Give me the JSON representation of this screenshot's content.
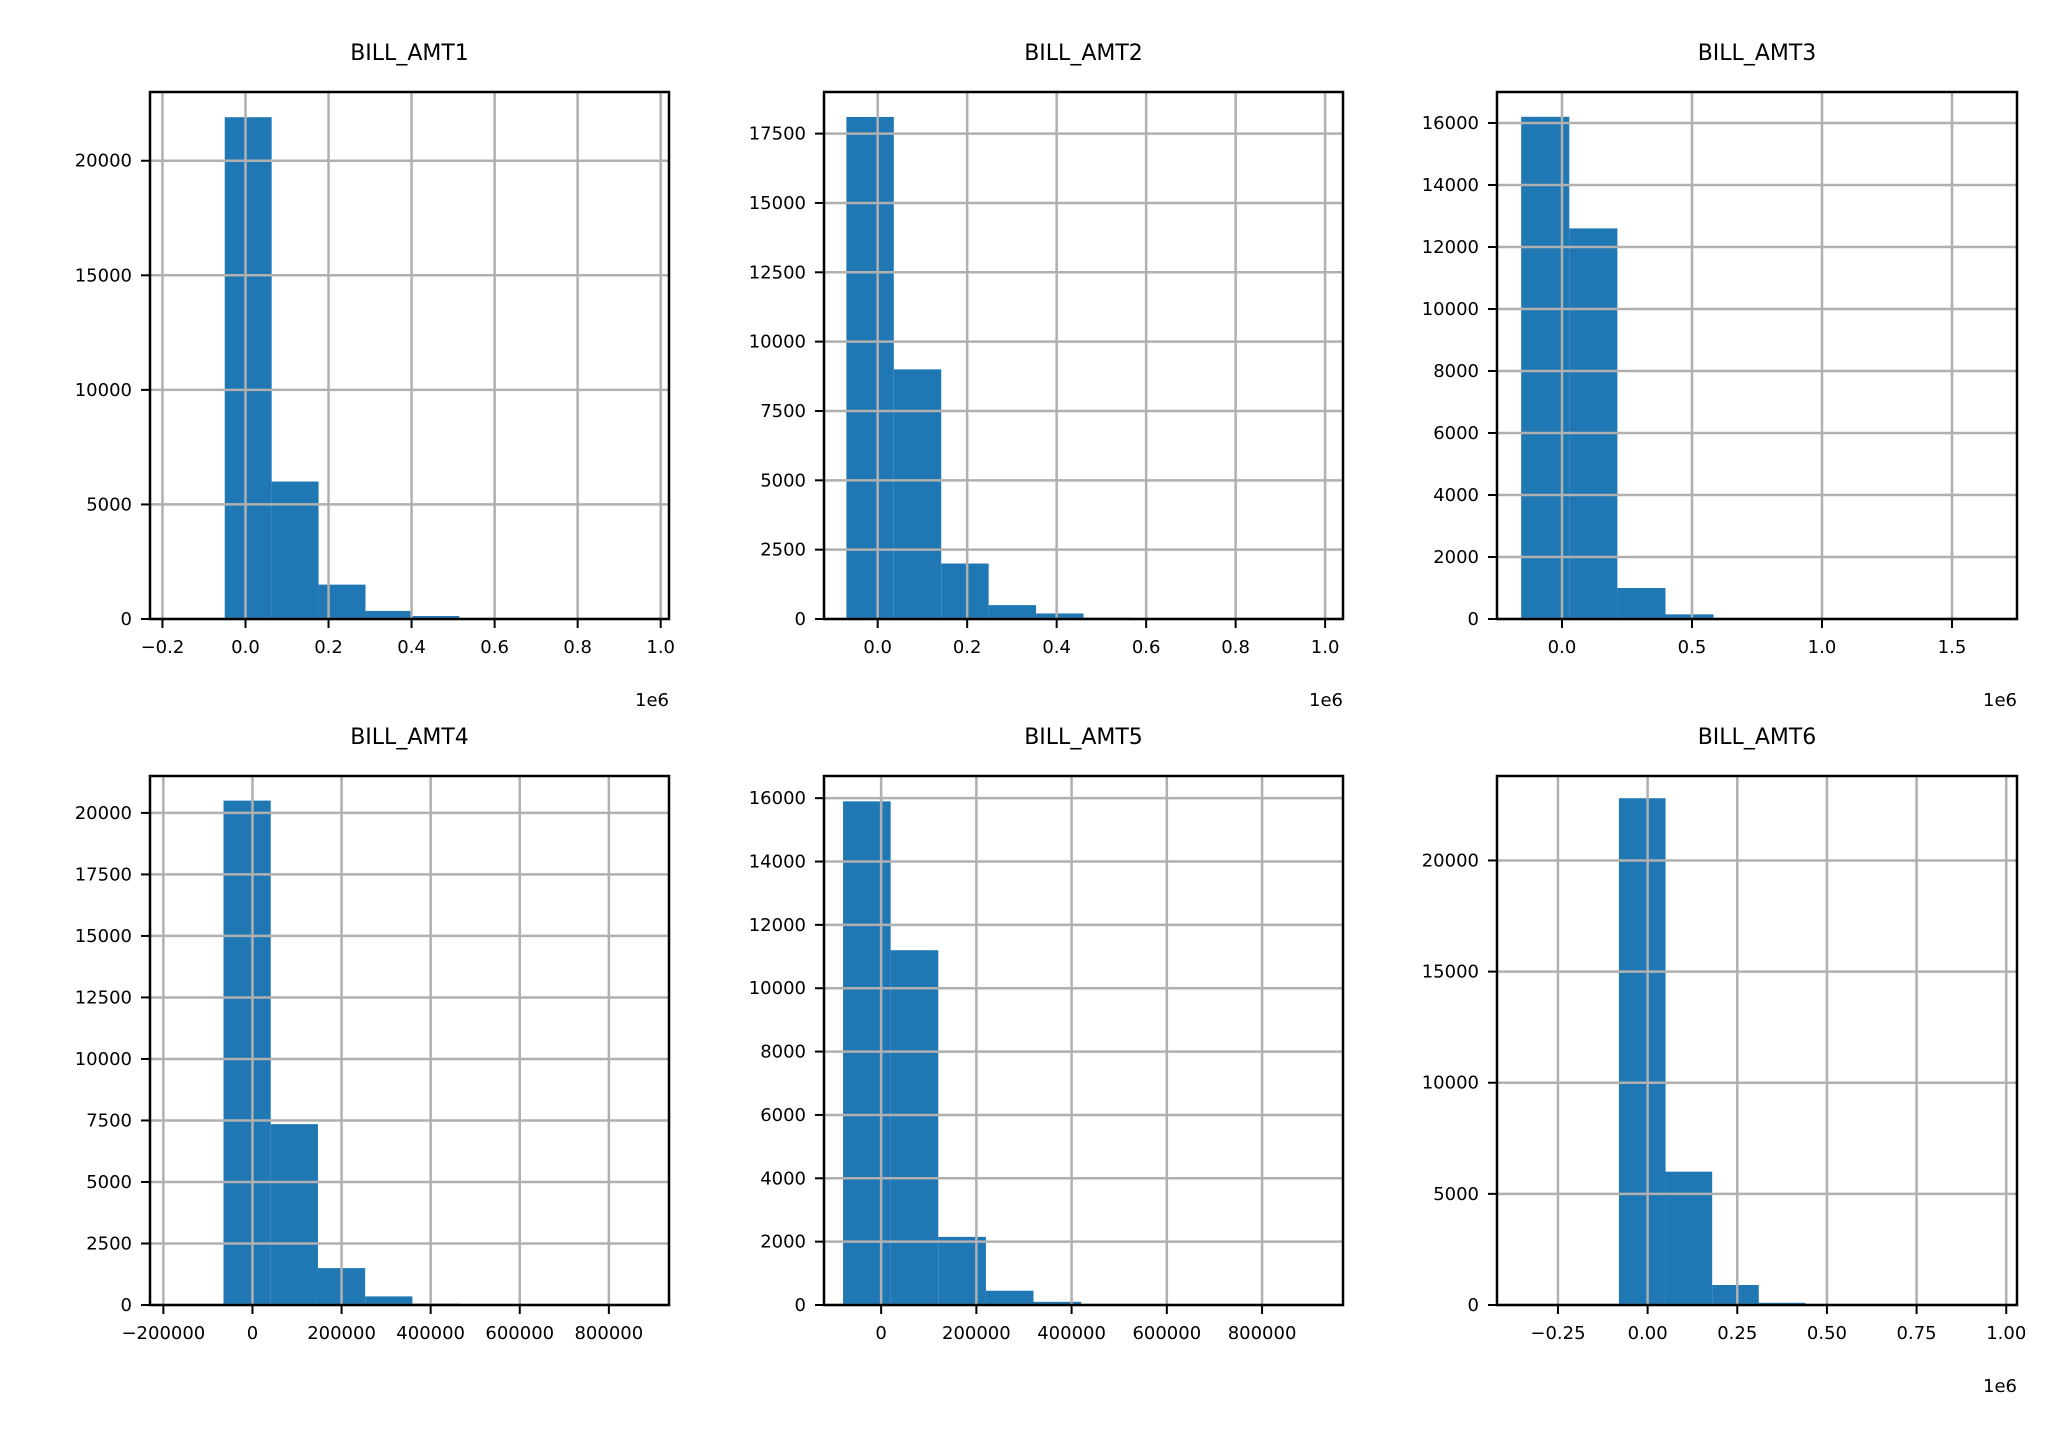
{
  "chart_data": [
    {
      "type": "bar",
      "title": "BILL_AMT1",
      "offset_label": "1e6",
      "bin_edges": [
        -50000,
        63000,
        176000,
        289000,
        402000,
        515000,
        628000,
        741000,
        854000,
        967000
      ],
      "values": [
        21900,
        6000,
        1500,
        350,
        130,
        20,
        5,
        2,
        1
      ],
      "xlim": [
        -230000,
        1020000
      ],
      "ylim": [
        0,
        23000
      ],
      "xticks": [
        -200000,
        0,
        200000,
        400000,
        600000,
        800000,
        1000000
      ],
      "xtick_labels": [
        "−0.2",
        "0.0",
        "0.2",
        "0.4",
        "0.6",
        "0.8",
        "1.0"
      ],
      "yticks": [
        0,
        5000,
        10000,
        15000,
        20000
      ],
      "ytick_labels": [
        "0",
        "5000",
        "10000",
        "15000",
        "20000"
      ],
      "grid": true
    },
    {
      "type": "bar",
      "title": "BILL_AMT2",
      "offset_label": "1e6",
      "bin_edges": [
        -70000,
        36000,
        142000,
        248000,
        354000,
        460000,
        566000,
        672000,
        778000,
        884000,
        990000
      ],
      "values": [
        18100,
        9000,
        2000,
        500,
        200,
        50,
        10,
        5,
        2,
        1
      ],
      "xlim": [
        -120000,
        1040000
      ],
      "ylim": [
        0,
        19000
      ],
      "xticks": [
        0,
        200000,
        400000,
        600000,
        800000,
        1000000
      ],
      "xtick_labels": [
        "0.0",
        "0.2",
        "0.4",
        "0.6",
        "0.8",
        "1.0"
      ],
      "yticks": [
        0,
        2500,
        5000,
        7500,
        10000,
        12500,
        15000,
        17500
      ],
      "ytick_labels": [
        "0",
        "2500",
        "5000",
        "7500",
        "10000",
        "12500",
        "15000",
        "17500"
      ],
      "grid": true
    },
    {
      "type": "bar",
      "title": "BILL_AMT3",
      "offset_label": "1e6",
      "bin_edges": [
        -157000,
        28000,
        213000,
        398000,
        583000,
        768000,
        953000,
        1138000,
        1323000,
        1508000,
        1693000
      ],
      "values": [
        16200,
        12600,
        1000,
        150,
        20,
        5,
        2,
        1,
        0,
        1
      ],
      "xlim": [
        -250000,
        1750000
      ],
      "ylim": [
        0,
        17000
      ],
      "xticks": [
        0,
        500000,
        1000000,
        1500000
      ],
      "xtick_labels": [
        "0.0",
        "0.5",
        "1.0",
        "1.5"
      ],
      "yticks": [
        0,
        2000,
        4000,
        6000,
        8000,
        10000,
        12000,
        14000,
        16000
      ],
      "ytick_labels": [
        "0",
        "2000",
        "4000",
        "6000",
        "8000",
        "10000",
        "12000",
        "14000",
        "16000"
      ],
      "grid": true
    },
    {
      "type": "bar",
      "title": "BILL_AMT4",
      "offset_label": "",
      "bin_edges": [
        -65000,
        41000,
        147000,
        253000,
        359000,
        465000,
        571000,
        677000,
        783000,
        889000
      ],
      "values": [
        20500,
        7350,
        1500,
        350,
        60,
        15,
        5,
        2,
        1
      ],
      "xlim": [
        -230000,
        935000
      ],
      "ylim": [
        0,
        21500
      ],
      "xticks": [
        -200000,
        0,
        200000,
        400000,
        600000,
        800000
      ],
      "xtick_labels": [
        "−200000",
        "0",
        "200000",
        "400000",
        "600000",
        "800000"
      ],
      "yticks": [
        0,
        2500,
        5000,
        7500,
        10000,
        12500,
        15000,
        17500,
        20000
      ],
      "ytick_labels": [
        "0",
        "2500",
        "5000",
        "7500",
        "10000",
        "12500",
        "15000",
        "17500",
        "20000"
      ],
      "grid": true
    },
    {
      "type": "bar",
      "title": "BILL_AMT5",
      "offset_label": "",
      "bin_edges": [
        -80000,
        20000,
        120000,
        220000,
        320000,
        420000,
        520000,
        620000,
        720000,
        820000,
        920000
      ],
      "values": [
        15900,
        11200,
        2150,
        450,
        100,
        20,
        5,
        2,
        1,
        1
      ],
      "xlim": [
        -120000,
        970000
      ],
      "ylim": [
        0,
        16700
      ],
      "xticks": [
        0,
        200000,
        400000,
        600000,
        800000
      ],
      "xtick_labels": [
        "0",
        "200000",
        "400000",
        "600000",
        "800000"
      ],
      "yticks": [
        0,
        2000,
        4000,
        6000,
        8000,
        10000,
        12000,
        14000,
        16000
      ],
      "ytick_labels": [
        "0",
        "2000",
        "4000",
        "6000",
        "8000",
        "10000",
        "12000",
        "14000",
        "16000"
      ],
      "grid": true
    },
    {
      "type": "bar",
      "title": "BILL_AMT6",
      "offset_label": "1e6",
      "bin_edges": [
        -340000,
        -210000,
        -80000,
        50000,
        180000,
        310000,
        440000,
        570000,
        700000,
        830000,
        960000
      ],
      "values": [
        1,
        0,
        22800,
        6000,
        900,
        100,
        20,
        5,
        2,
        1
      ],
      "xlim": [
        -420000,
        1030000
      ],
      "ylim": [
        0,
        23800
      ],
      "xticks": [
        -250000,
        0,
        250000,
        500000,
        750000,
        1000000
      ],
      "xtick_labels": [
        "−0.25",
        "0.00",
        "0.25",
        "0.50",
        "0.75",
        "1.00"
      ],
      "yticks": [
        0,
        5000,
        10000,
        15000,
        20000
      ],
      "ytick_labels": [
        "0",
        "5000",
        "10000",
        "15000",
        "20000"
      ],
      "grid": true
    }
  ],
  "colors": {
    "bar": "#1f77b4",
    "grid": "#b0b0b0",
    "axis": "#000000",
    "background": "#ffffff"
  }
}
